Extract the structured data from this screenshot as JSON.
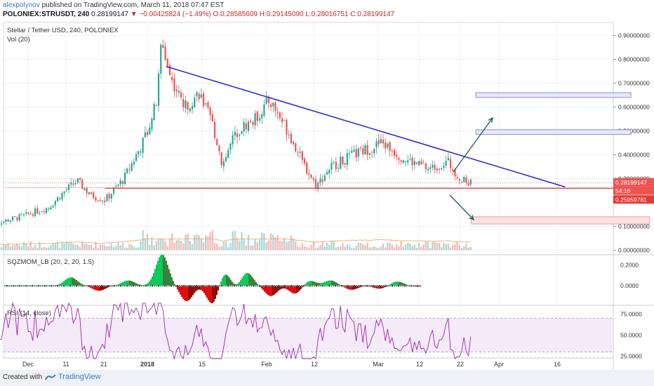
{
  "header": {
    "user": "alexpolynov",
    "published": "published on TradingView.com, March 11, 2018 07:47 EST",
    "symbol": "POLONIEX:STRUSDT, 240",
    "last": "0.28199147",
    "change_arrow": "▼",
    "change": "−0.00425824 (−1.49%)",
    "ohlc": "O:0.28585609 H:0.29145090 L:0.28016751 C:0.28199147"
  },
  "panes": {
    "title": "Stellar / Tether USD, 240, POLONIEX",
    "vol": "Vol (20)",
    "sqz": "SQZMOM_LB (20, 2, 20, 1.5)",
    "rsi": "RSI (14, close)"
  },
  "price_axis": {
    "ticks": [
      "0.90000000",
      "0.80000000",
      "0.70000000",
      "0.60000000",
      "0.50000000",
      "0.40000000",
      "0.30000000",
      "0.10000000",
      "0.00000000"
    ],
    "tick_values": [
      0.9,
      0.8,
      0.7,
      0.6,
      0.5,
      0.4,
      0.3,
      0.1,
      0.0
    ],
    "last_price_tag": "0.28199147",
    "countdown_tag": "54:16",
    "support_tag": "0.25959781"
  },
  "sqz_axis": {
    "ticks": [
      "0.2000",
      "0.0000"
    ],
    "tick_values": [
      0.2,
      0.0
    ]
  },
  "rsi_axis": {
    "ticks": [
      "75.0000",
      "50.0000",
      "25.0000"
    ],
    "tick_values": [
      75,
      50,
      25
    ]
  },
  "time_axis": {
    "labels": [
      "Dec",
      "11",
      "21",
      "2018",
      "15",
      "Feb",
      "12",
      "Mar",
      "12",
      "22",
      "Apr",
      "16"
    ]
  },
  "footer": {
    "created": "Created with",
    "brand": "TradingView"
  },
  "colors": {
    "up": "#26a69a",
    "down": "#ef5350",
    "trendline": "#2d2dd6",
    "support": "#e53935",
    "arrow": "#1e5a5a",
    "rsi": "#9c27b0",
    "sqz_green": "#00c853",
    "sqz_red": "#e00000"
  },
  "chart_data": {
    "type": "candlestick",
    "title": "Stellar / Tether USD, 240, POLONIEX",
    "ylim": [
      0.0,
      0.95
    ],
    "close_path": [
      [
        "2017-11-29",
        0.11
      ],
      [
        "2017-12-05",
        0.14
      ],
      [
        "2017-12-11",
        0.18
      ],
      [
        "2017-12-14",
        0.24
      ],
      [
        "2017-12-17",
        0.29
      ],
      [
        "2017-12-20",
        0.23
      ],
      [
        "2017-12-23",
        0.21
      ],
      [
        "2017-12-27",
        0.3
      ],
      [
        "2017-12-31",
        0.45
      ],
      [
        "2018-01-03",
        0.62
      ],
      [
        "2018-01-04",
        0.88
      ],
      [
        "2018-01-06",
        0.72
      ],
      [
        "2018-01-09",
        0.6
      ],
      [
        "2018-01-12",
        0.66
      ],
      [
        "2018-01-15",
        0.52
      ],
      [
        "2018-01-17",
        0.36
      ],
      [
        "2018-01-20",
        0.5
      ],
      [
        "2018-01-24",
        0.55
      ],
      [
        "2018-01-27",
        0.63
      ],
      [
        "2018-01-31",
        0.5
      ],
      [
        "2018-02-03",
        0.37
      ],
      [
        "2018-02-06",
        0.27
      ],
      [
        "2018-02-09",
        0.35
      ],
      [
        "2018-02-14",
        0.4
      ],
      [
        "2018-02-20",
        0.45
      ],
      [
        "2018-02-25",
        0.38
      ],
      [
        "2018-03-02",
        0.34
      ],
      [
        "2018-03-06",
        0.37
      ],
      [
        "2018-03-09",
        0.29
      ],
      [
        "2018-03-11",
        0.282
      ]
    ],
    "annotations": {
      "descending_trendline": [
        [
          "2018-01-05",
          0.77
        ],
        [
          "2018-03-31",
          0.265
        ]
      ],
      "support_line": 0.25959781,
      "target_box_1": [
        0.66,
        0.64
      ],
      "target_box_2": [
        0.505,
        0.485
      ],
      "downside_box": [
        0.14,
        0.11
      ]
    }
  }
}
